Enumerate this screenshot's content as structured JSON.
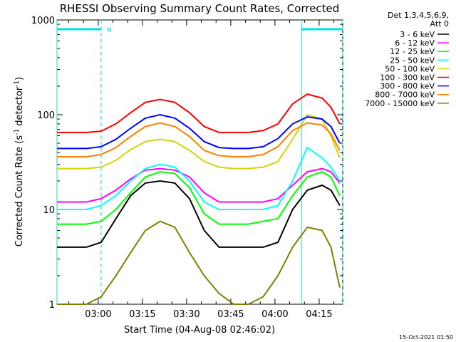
{
  "chart_data": {
    "type": "line",
    "title": "RHESSI Observing Summary Count Rates, Corrected",
    "xlabel": "Start Time (04-Aug-08 02:46:02)",
    "ylabel_main": "Corrected Count Rate (s",
    "ylabel_sup1": "-1",
    "ylabel_mid": " detector",
    "ylabel_sup2": "-1",
    "ylabel_end": ")",
    "y_scale": "log",
    "x_range": [
      "02:46",
      "04:23"
    ],
    "y_range": [
      1,
      1000
    ],
    "x_ticks": [
      "03:00",
      "03:15",
      "03:30",
      "03:45",
      "04:00",
      "04:15"
    ],
    "y_ticks": [
      "1000",
      "100",
      "10",
      "1"
    ],
    "legend_title_line1": "Det 1,3,4,5,6,9,",
    "legend_title_line2": "Att 0",
    "legend_position": "right",
    "night_marker_label": "N",
    "marker_color": "#00e0e0",
    "night_periods": [
      [
        "02:46",
        "03:01"
      ],
      [
        "04:09",
        "04:23"
      ]
    ],
    "series": [
      {
        "name": "3 - 6 keV",
        "color": "#000000",
        "values": [
          4,
          4,
          4,
          4.5,
          8,
          14,
          19,
          20,
          19,
          13,
          6,
          4,
          4,
          4,
          4,
          4.5,
          10,
          16,
          18,
          16,
          11
        ]
      },
      {
        "name": "6 - 12 keV",
        "color": "#ff00ff",
        "values": [
          12,
          12,
          12,
          13,
          16,
          21,
          26,
          27,
          26,
          22,
          15,
          12,
          12,
          12,
          12,
          13,
          18,
          25,
          27,
          25,
          19
        ]
      },
      {
        "name": "12 - 25 keV",
        "color": "#00ff00",
        "values": [
          7,
          7,
          7,
          7.5,
          10,
          15,
          22,
          25,
          24,
          17,
          9,
          7,
          7,
          7,
          7.5,
          8,
          14,
          22,
          25,
          22,
          14
        ]
      },
      {
        "name": "25 - 50 keV",
        "color": "#00ffff",
        "values": [
          10,
          10,
          10,
          11,
          14,
          20,
          27,
          30,
          28,
          20,
          12,
          10,
          10,
          10,
          10,
          11,
          20,
          45,
          35,
          28,
          20
        ]
      },
      {
        "name": "50 - 100 keV",
        "color": "#d4d400",
        "values": [
          27,
          27,
          27,
          28,
          33,
          43,
          52,
          55,
          52,
          42,
          32,
          28,
          27,
          27,
          28,
          32,
          55,
          100,
          90,
          60,
          35
        ]
      },
      {
        "name": "100 - 300 keV",
        "color": "#ff0000",
        "values": [
          65,
          65,
          65,
          67,
          80,
          105,
          135,
          145,
          135,
          105,
          75,
          65,
          65,
          65,
          68,
          80,
          130,
          165,
          150,
          120,
          80
        ]
      },
      {
        "name": "300 - 800 keV",
        "color": "#0000ff",
        "values": [
          44,
          44,
          44,
          46,
          55,
          72,
          92,
          100,
          92,
          72,
          52,
          45,
          44,
          44,
          46,
          56,
          80,
          95,
          90,
          75,
          50
        ]
      },
      {
        "name": "800 - 7000 keV",
        "color": "#ff8000",
        "values": [
          36,
          36,
          36,
          38,
          45,
          59,
          75,
          82,
          75,
          59,
          42,
          37,
          36,
          36,
          38,
          46,
          68,
          82,
          78,
          63,
          42
        ]
      },
      {
        "name": "7000 - 15000 keV",
        "color": "#808000",
        "values": [
          1,
          1,
          1,
          1.2,
          2,
          3.5,
          6,
          7.5,
          6.5,
          3.5,
          2,
          1.3,
          1,
          1,
          1.2,
          2,
          4,
          6.5,
          6,
          4,
          1.5
        ]
      }
    ],
    "x_times": [
      "02:46",
      "02:51",
      "02:56",
      "03:01",
      "03:06",
      "03:11",
      "03:16",
      "03:21",
      "03:26",
      "03:31",
      "03:36",
      "03:41",
      "03:46",
      "03:51",
      "03:56",
      "04:01",
      "04:06",
      "04:11",
      "04:16",
      "04:19",
      "04:22"
    ]
  },
  "footer_timestamp": "15-Oct-2021 01:50"
}
